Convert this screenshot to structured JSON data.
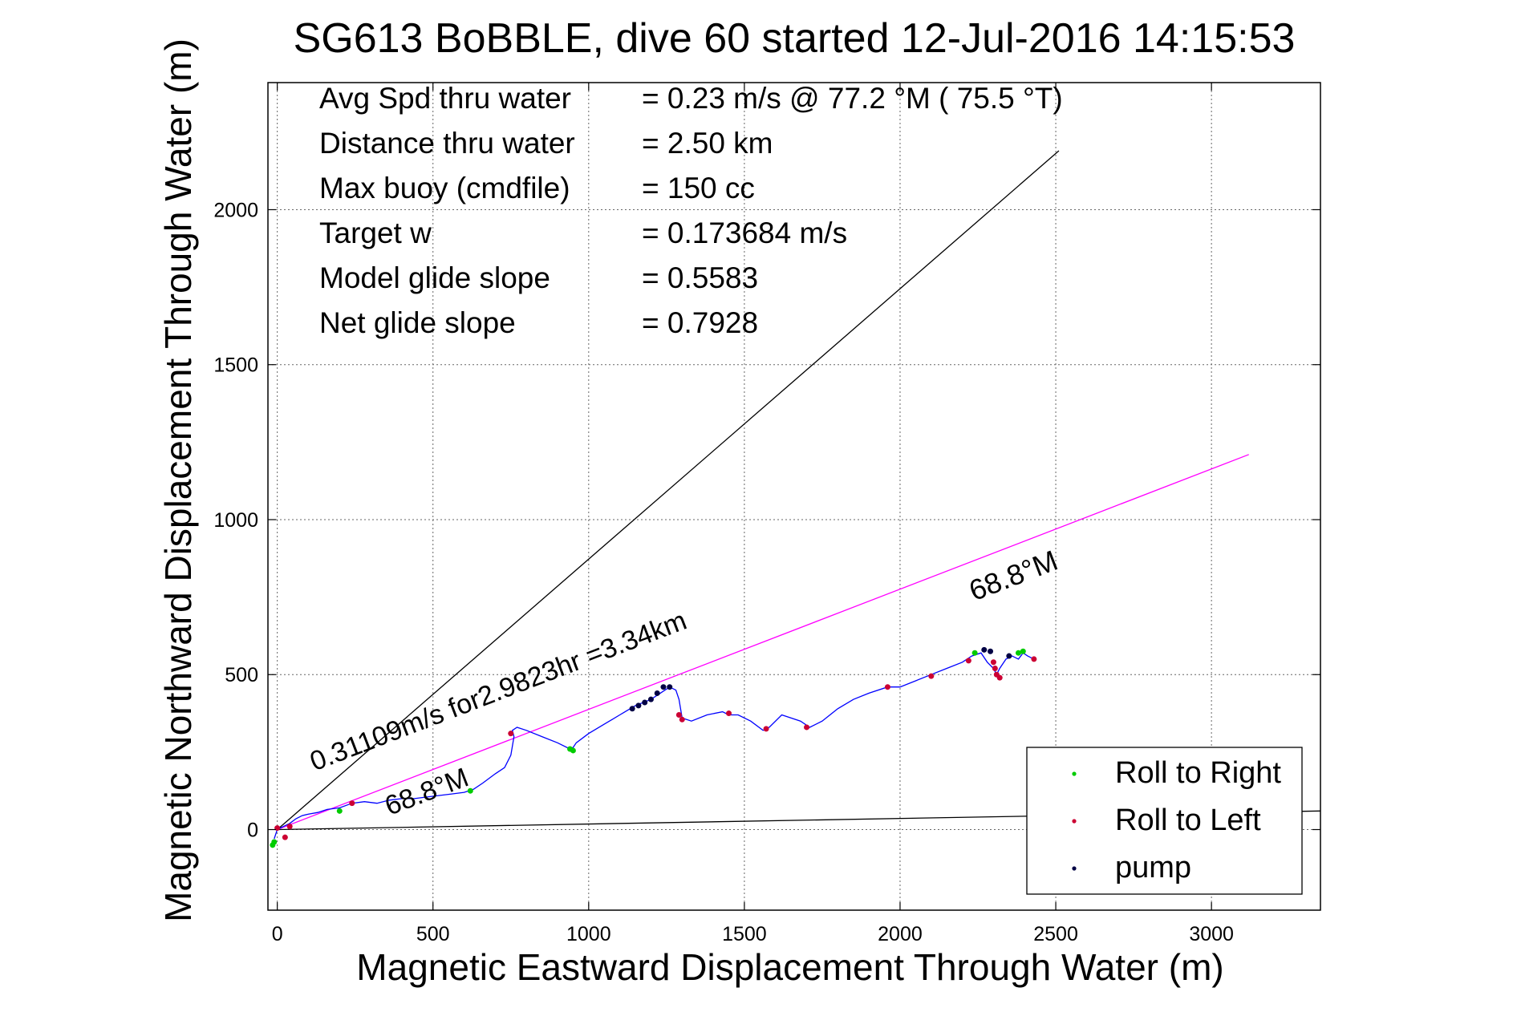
{
  "chart_data": {
    "type": "line",
    "title": "SG613 BoBBLE, dive 60 started 12-Jul-2016 14:15:53",
    "xlabel": "Magnetic Eastward Displacement Through Water (m)",
    "ylabel": "Magnetic Northward Displacement Through Water (m)",
    "xlim": [
      -30,
      3350
    ],
    "ylim": [
      -260,
      2410
    ],
    "xticks": [
      0,
      500,
      1000,
      1500,
      2000,
      2500,
      3000
    ],
    "xtick_labels": [
      "0",
      "500",
      "1000",
      "1500",
      "2000",
      "2500",
      "3000"
    ],
    "yticks": [
      0,
      500,
      1000,
      1500,
      2000
    ],
    "ytick_labels": [
      "0",
      "500",
      "1000",
      "1500",
      "2000"
    ],
    "grid": true,
    "stats": [
      {
        "label": "Avg Spd thru water",
        "value": "=  0.23 m/s @  77.2 °M ( 75.5 °T)"
      },
      {
        "label": "Distance thru water",
        "value": "=  2.50 km"
      },
      {
        "label": "Max buoy (cmdfile)",
        "value": "= 150 cc"
      },
      {
        "label": "Target w",
        "value": "= 0.173684 m/s"
      },
      {
        "label": "Model glide slope",
        "value": "= 0.5583"
      },
      {
        "label": "Net glide slope",
        "value": "= 0.7928"
      }
    ],
    "reference_lines": [
      {
        "color": "#000000",
        "x": [
          0,
          2510
        ],
        "y": [
          0,
          2190
        ]
      },
      {
        "color": "#000000",
        "x": [
          0,
          3350
        ],
        "y": [
          0,
          60
        ]
      },
      {
        "color": "#ff00ff",
        "x": [
          0,
          3120
        ],
        "y": [
          0,
          1210
        ]
      }
    ],
    "annotations": [
      {
        "text": "68.8°M",
        "x": 2375,
        "y": 790,
        "angle": -21
      },
      {
        "text": "0.31109m/s for2.9823hr =3.34km",
        "x": 720,
        "y": 420,
        "angle": -21
      },
      {
        "text": "68.8°M",
        "x": 490,
        "y": 95,
        "angle": -21
      }
    ],
    "track": {
      "color": "#0000ff",
      "x": [
        -10,
        0,
        20,
        40,
        60,
        80,
        100,
        130,
        160,
        200,
        240,
        280,
        320,
        360,
        400,
        440,
        480,
        520,
        560,
        600,
        630,
        660,
        700,
        730,
        750,
        760,
        755,
        770,
        800,
        850,
        900,
        940,
        950,
        960,
        1000,
        1050,
        1100,
        1150,
        1200,
        1230,
        1260,
        1280,
        1290,
        1300,
        1330,
        1380,
        1430,
        1450,
        1480,
        1520,
        1560,
        1580,
        1620,
        1680,
        1710,
        1750,
        1800,
        1850,
        1900,
        1960,
        2000,
        2050,
        2100,
        2150,
        2200,
        2230,
        2260,
        2280,
        2300,
        2310,
        2320,
        2340,
        2360,
        2380,
        2395,
        2410,
        2430
      ],
      "y": [
        -30,
        0,
        10,
        20,
        35,
        45,
        50,
        55,
        65,
        70,
        85,
        90,
        85,
        95,
        100,
        100,
        105,
        110,
        115,
        120,
        130,
        150,
        180,
        200,
        240,
        300,
        320,
        330,
        320,
        300,
        280,
        260,
        265,
        280,
        310,
        340,
        370,
        400,
        420,
        440,
        460,
        450,
        420,
        360,
        350,
        370,
        380,
        370,
        370,
        350,
        320,
        330,
        370,
        350,
        330,
        350,
        390,
        420,
        440,
        460,
        460,
        480,
        500,
        520,
        540,
        560,
        570,
        540,
        520,
        500,
        520,
        550,
        560,
        550,
        570,
        560,
        550
      ]
    },
    "roll_right": {
      "color": "#00cc00",
      "x": [
        -15,
        -10,
        200,
        620,
        940,
        950,
        2240,
        2380,
        2395
      ],
      "y": [
        -50,
        -40,
        60,
        125,
        260,
        255,
        570,
        570,
        575
      ]
    },
    "roll_left": {
      "color": "#cc0033",
      "x": [
        0,
        25,
        40,
        240,
        750,
        1290,
        1300,
        1450,
        1570,
        1700,
        1960,
        2100,
        2220,
        2300,
        2305,
        2310,
        2320,
        2430
      ],
      "y": [
        5,
        -25,
        10,
        85,
        310,
        370,
        355,
        375,
        325,
        330,
        460,
        495,
        545,
        540,
        520,
        500,
        490,
        550
      ]
    },
    "pump": {
      "color": "#000044",
      "x": [
        1140,
        1160,
        1180,
        1200,
        1220,
        1240,
        1260,
        2270,
        2290,
        2350
      ],
      "y": [
        390,
        400,
        410,
        420,
        440,
        460,
        460,
        580,
        575,
        560
      ]
    },
    "legend": {
      "placement": "bottom-right",
      "entries": [
        {
          "name": "Roll to Right",
          "color": "#00cc00"
        },
        {
          "name": "Roll to Left",
          "color": "#cc0033"
        },
        {
          "name": "pump",
          "color": "#000044"
        }
      ]
    }
  }
}
